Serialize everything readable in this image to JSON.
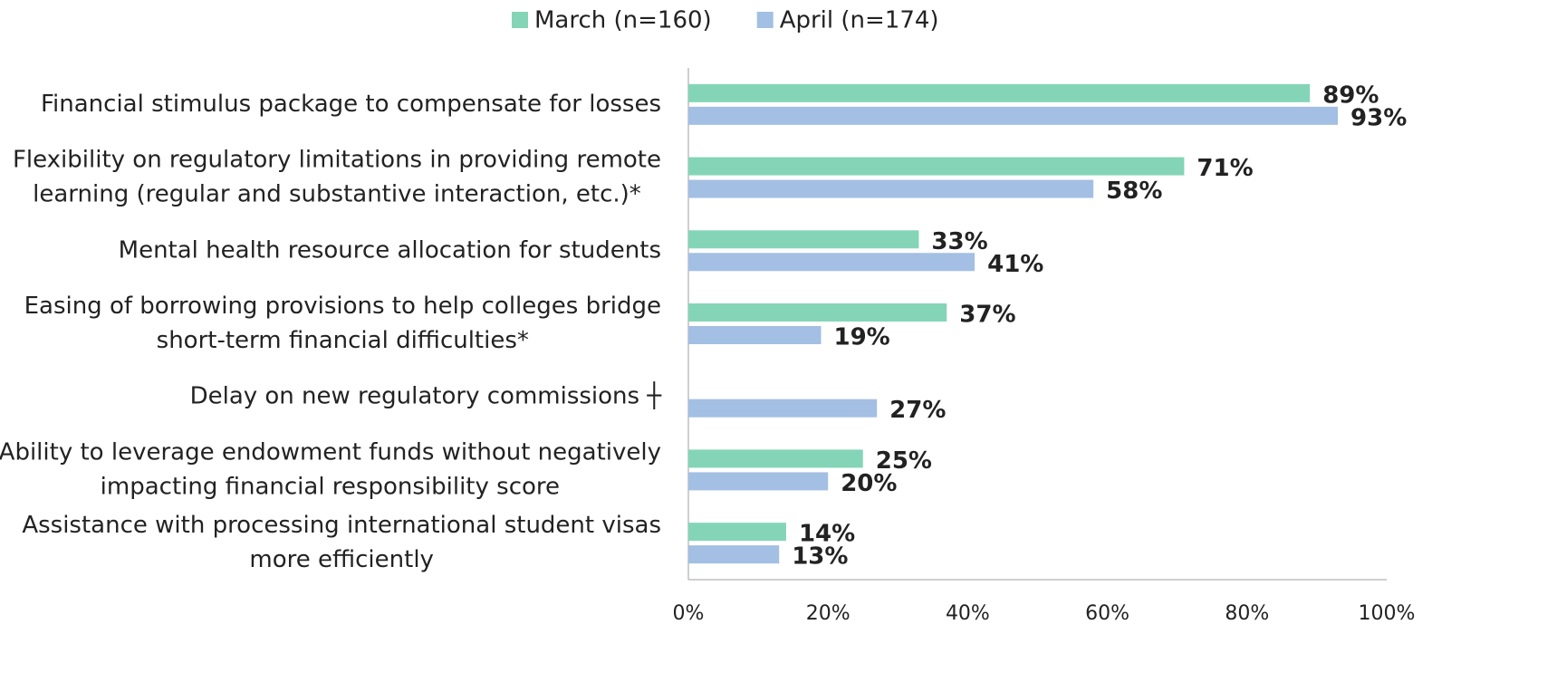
{
  "chart_data": {
    "type": "bar",
    "orientation": "horizontal",
    "categories": [
      [
        "Financial stimulus package to compensate for losses"
      ],
      [
        "Flexibility on regulatory limitations in providing remote",
        "learning (regular and substantive interaction, etc.)*"
      ],
      [
        "Mental health resource allocation for students"
      ],
      [
        "Easing of borrowing provisions to help colleges bridge",
        "short-term financial difficulties*"
      ],
      [
        "Delay on new regulatory commissions ┼"
      ],
      [
        "Ability to leverage endowment funds without negatively",
        "impacting financial responsibility score"
      ],
      [
        "Assistance with processing international student visas",
        "more efficiently"
      ]
    ],
    "series": [
      {
        "name": "March (n=160)",
        "color": "#84d5b8",
        "values": [
          89,
          71,
          33,
          37,
          null,
          25,
          14
        ],
        "value_labels": [
          "89%",
          "71%",
          "33%",
          "37%",
          null,
          "25%",
          "14%"
        ]
      },
      {
        "name": "April (n=174)",
        "color": "#a3bfe3",
        "values": [
          93,
          58,
          41,
          19,
          27,
          20,
          13
        ],
        "value_labels": [
          "93%",
          "58%",
          "41%",
          "19%",
          "27%",
          "20%",
          "13%"
        ]
      }
    ],
    "xlim": [
      0,
      100
    ],
    "xticks": [
      {
        "value": 0,
        "label": "0%"
      },
      {
        "value": 20,
        "label": "20%"
      },
      {
        "value": 40,
        "label": "40%"
      },
      {
        "value": 60,
        "label": "60%"
      },
      {
        "value": 80,
        "label": "80%"
      },
      {
        "value": 100,
        "label": "100%"
      }
    ],
    "grid": false,
    "legend": "top"
  }
}
